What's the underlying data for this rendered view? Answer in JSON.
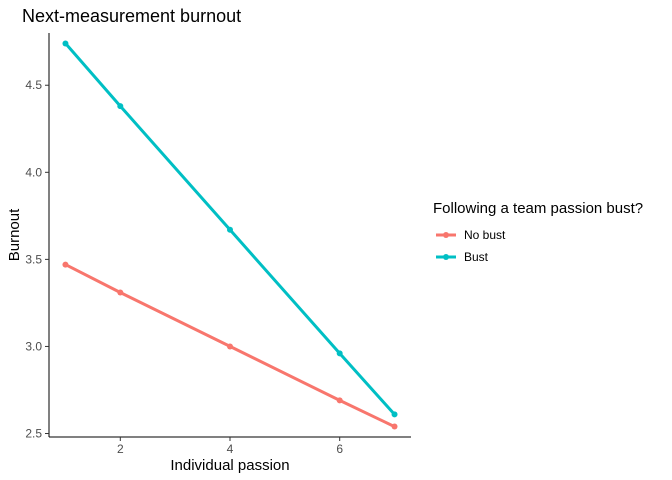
{
  "chart_data": {
    "type": "line",
    "title": "Next-measurement burnout",
    "xlabel": "Individual passion",
    "ylabel": "Burnout",
    "x": [
      1,
      2,
      4,
      6,
      7
    ],
    "xlim": [
      0.7,
      7.3
    ],
    "ylim": [
      2.48,
      4.8
    ],
    "xticks": [
      2,
      4,
      6
    ],
    "yticks": [
      2.5,
      3.0,
      3.5,
      4.0,
      4.5
    ],
    "ytick_labels": [
      "2.5",
      "3.0",
      "3.5",
      "4.0",
      "4.5"
    ],
    "grid": false,
    "legend": {
      "title": "Following a team passion bust?",
      "position": "right"
    },
    "series": [
      {
        "name": "No bust",
        "color": "#F8766D",
        "values": [
          3.47,
          3.31,
          3.0,
          2.69,
          2.54
        ]
      },
      {
        "name": "Bust",
        "color": "#00BFC4",
        "values": [
          4.74,
          4.38,
          3.67,
          2.96,
          2.61
        ]
      }
    ]
  }
}
